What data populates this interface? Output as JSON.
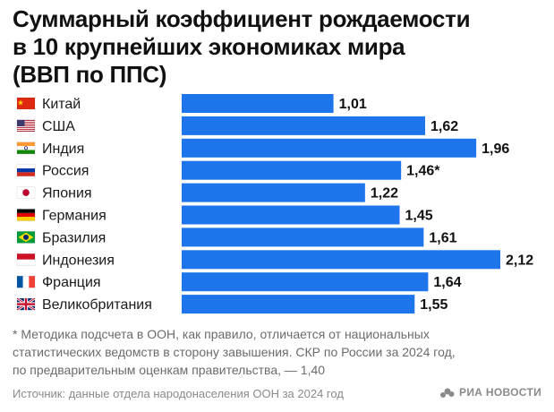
{
  "title_lines": [
    "Суммарный коэффициент рождаемости",
    "в 10 крупнейших экономиках мира",
    "(ВВП по ППС)"
  ],
  "footnote_lines": [
    "* Методика подсчета в ООН, как правило, отличается от национальных",
    "статистических ведомств в сторону завышения. СКР по России за 2024 год,",
    "по предварительным оценкам правительства, — 1,40"
  ],
  "source": "Источник: данные отдела народонаселения ООН за 2024 год",
  "logo": {
    "text": "РИА НОВОСТИ",
    "icon": "ria-logo-icon"
  },
  "colors": {
    "bar": "#1e74ea",
    "text": "#1a1a1a",
    "muted": "#6b6b6b"
  },
  "chart_data": {
    "type": "bar",
    "orientation": "horizontal",
    "categories": [
      "Китай",
      "США",
      "Индия",
      "Россия",
      "Япония",
      "Германия",
      "Бразилия",
      "Индонезия",
      "Франция",
      "Великобритания"
    ],
    "values": [
      1.01,
      1.62,
      1.96,
      1.46,
      1.22,
      1.45,
      1.61,
      2.12,
      1.64,
      1.55
    ],
    "value_labels": [
      "1,01",
      "1,62",
      "1,96",
      "1,46*",
      "1,22",
      "1,45",
      "1,61",
      "2,12",
      "1,64",
      "1,55"
    ],
    "flag_icons": [
      "china-flag-icon",
      "usa-flag-icon",
      "india-flag-icon",
      "russia-flag-icon",
      "japan-flag-icon",
      "germany-flag-icon",
      "brazil-flag-icon",
      "indonesia-flag-icon",
      "france-flag-icon",
      "uk-flag-icon"
    ],
    "grid": false,
    "legend": "none"
  }
}
